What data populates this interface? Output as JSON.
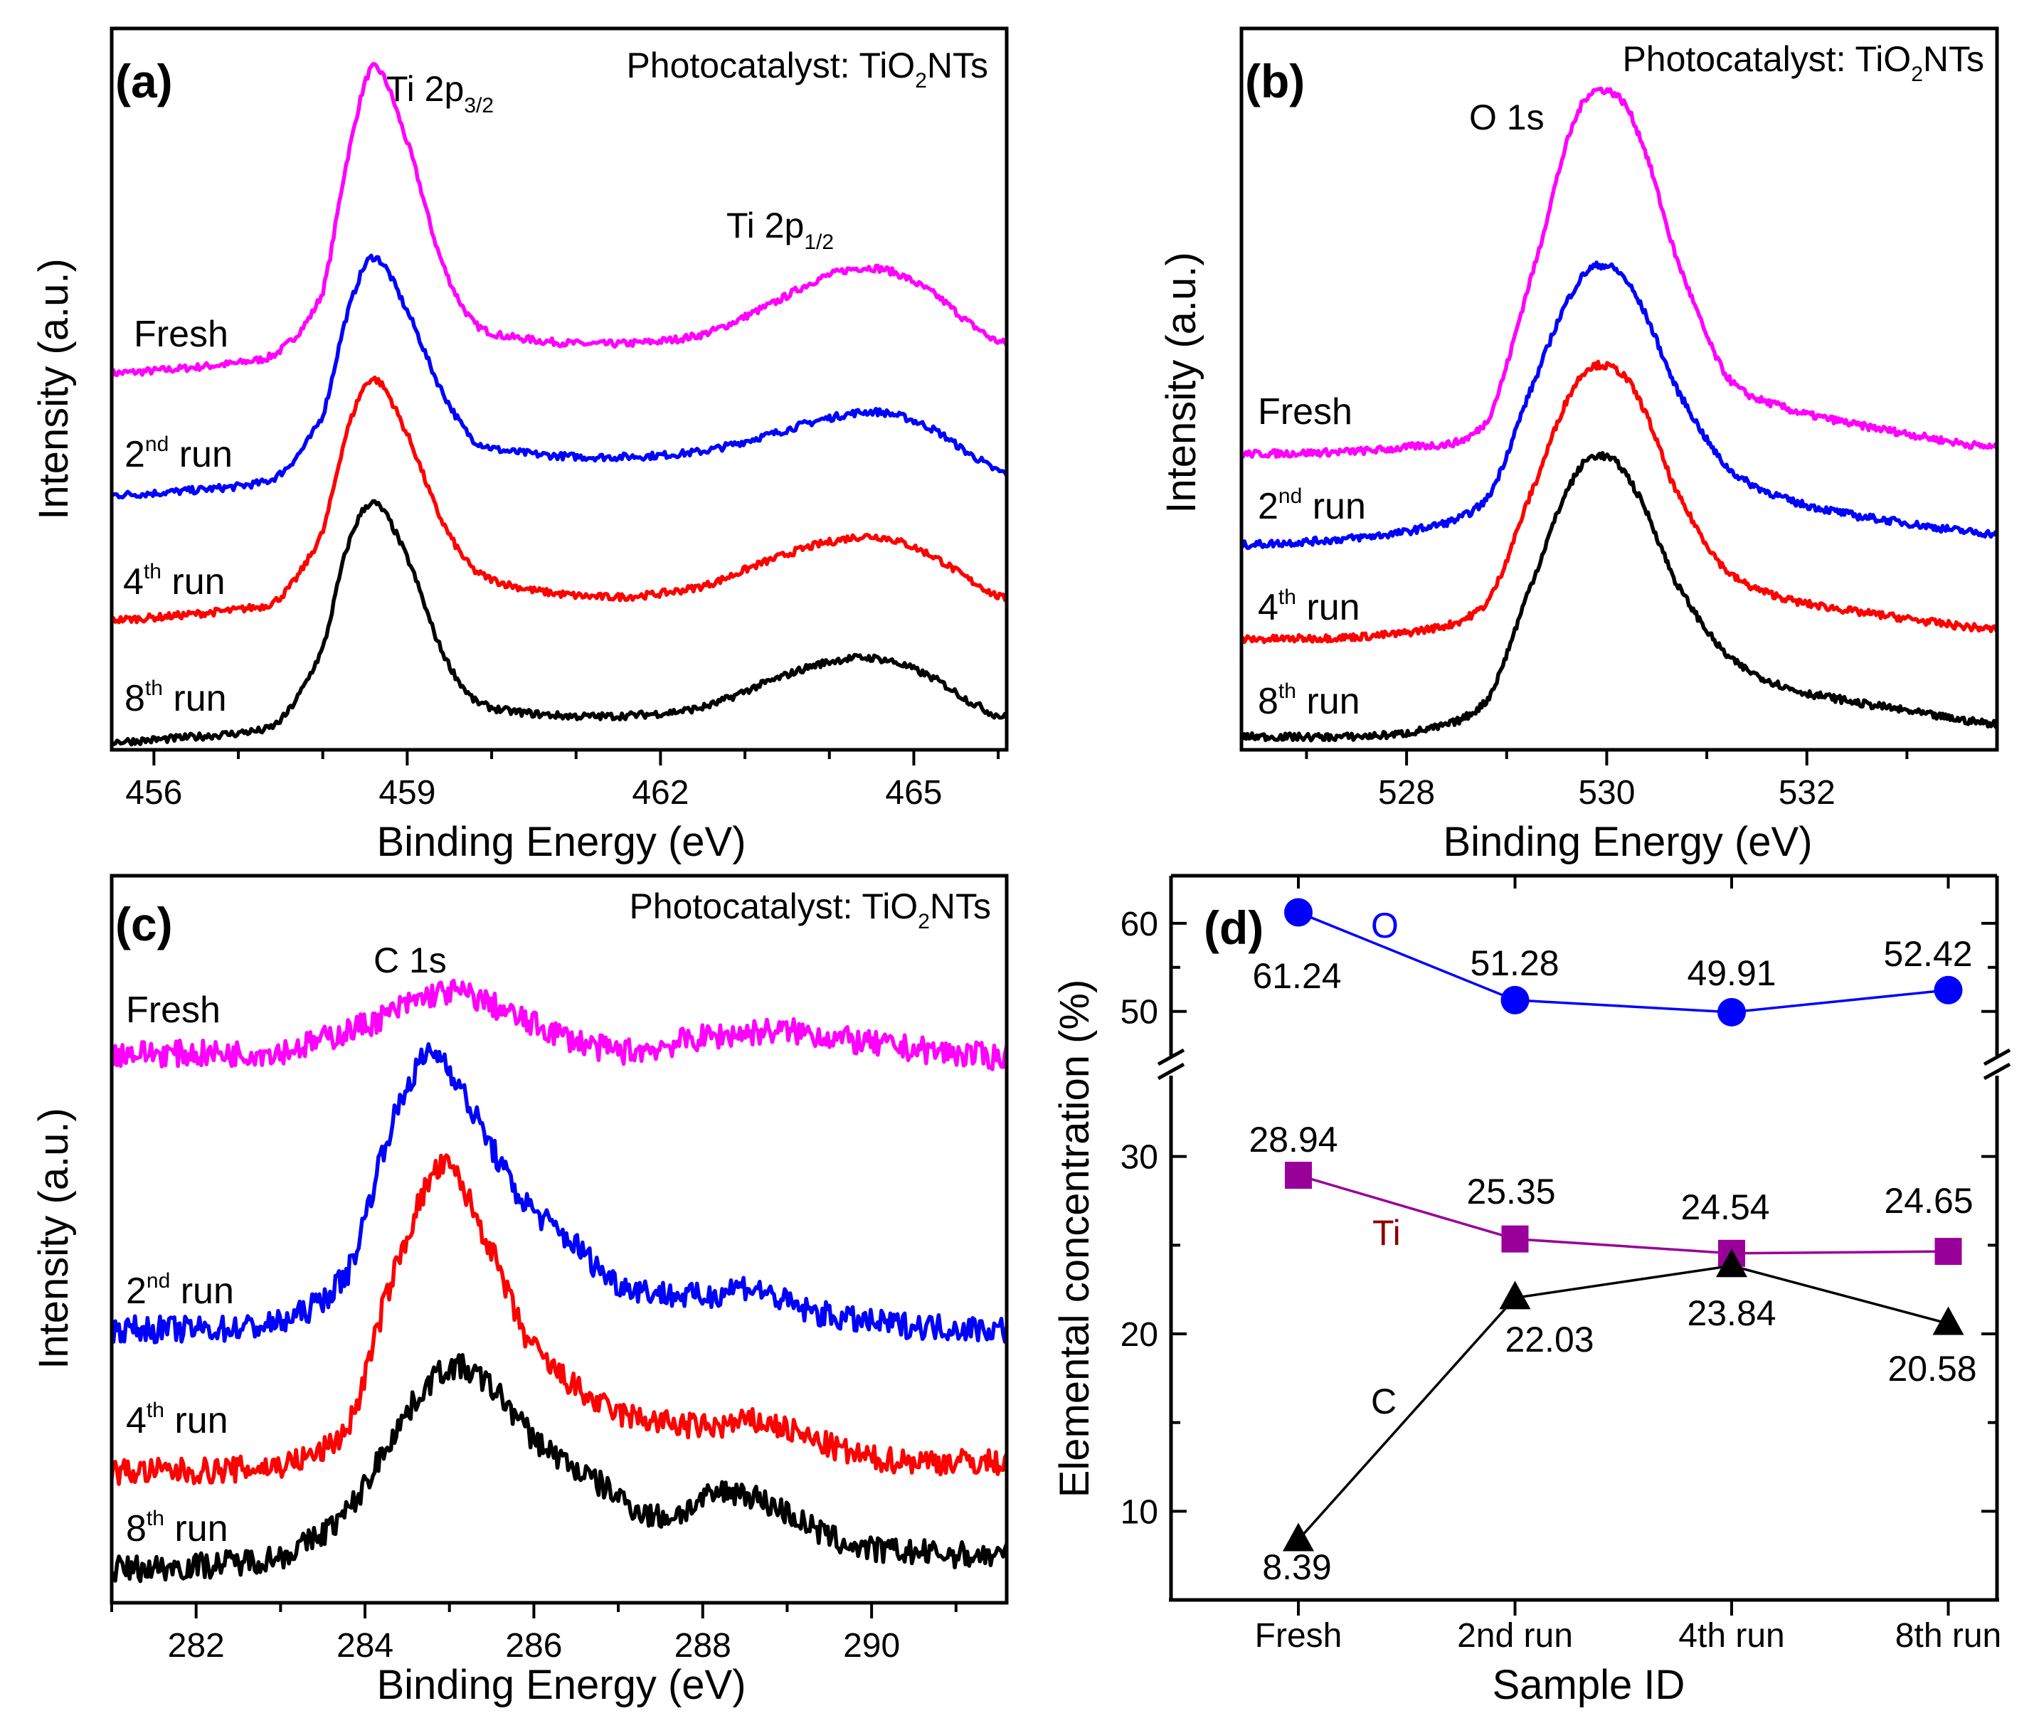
{
  "chart_data": [
    {
      "panel": "(a)",
      "type": "line",
      "title_parts": [
        "Photocatalyst: TiO",
        "2",
        "NTs"
      ],
      "peak_labels": [
        [
          "Ti 2p",
          "3/2"
        ],
        [
          "Ti 2p",
          "1/2"
        ]
      ],
      "xlabel": "Binding Energy (eV)",
      "ylabel": "Intensity (a.u.)",
      "xlim": [
        455.5,
        466.1
      ],
      "ylim": [
        0,
        100
      ],
      "xticks": [
        "456",
        "459",
        "462",
        "465"
      ],
      "minor_tick_step": 1,
      "series": [
        {
          "label": [
            "Fresh",
            "",
            ""
          ],
          "color": "#ff00ff",
          "x": [
            455.5,
            457,
            457.5,
            458,
            458.3,
            458.6,
            459,
            459.4,
            459.8,
            460.5,
            461.5,
            462.5,
            463.3,
            464,
            464.6,
            465.2,
            465.8,
            466.1
          ],
          "y": [
            52.2,
            53.6,
            55.4,
            63.5,
            82.4,
            94.6,
            84.2,
            68,
            59,
            56.8,
            56.3,
            57.6,
            61.7,
            65.8,
            66.7,
            63.5,
            58.1,
            56.3
          ]
        },
        {
          "label": [
            "2",
            "nd",
            " run"
          ],
          "color": "#0000ff",
          "x": [
            455.5,
            457,
            457.5,
            458,
            458.3,
            458.6,
            459,
            459.4,
            459.8,
            460.5,
            461.5,
            462.5,
            463.3,
            464,
            464.6,
            465.2,
            465.8,
            466.1
          ],
          "y": [
            35.3,
            36.5,
            38.3,
            46.4,
            60.8,
            68.3,
            60.8,
            50,
            42.8,
            41,
            40.6,
            41.4,
            43.7,
            46,
            46.8,
            44.6,
            40.1,
            38.3
          ]
        },
        {
          "label": [
            "4",
            "th",
            " run"
          ],
          "color": "#ff0000",
          "x": [
            455.5,
            457,
            457.5,
            458,
            458.3,
            458.6,
            459,
            459.4,
            459.8,
            460.5,
            461.5,
            462.5,
            463.3,
            464,
            464.6,
            465.2,
            465.8,
            466.1
          ],
          "y": [
            18,
            19.4,
            21.2,
            30.2,
            44.6,
            51.4,
            43.7,
            32,
            24.8,
            22.1,
            21.2,
            22.7,
            26.3,
            28.8,
            29.5,
            27,
            22.7,
            20.9
          ]
        },
        {
          "label": [
            "8",
            "th",
            " run"
          ],
          "color": "#000000",
          "x": [
            455.5,
            457,
            457.5,
            458,
            458.3,
            458.6,
            459,
            459.4,
            459.8,
            460.5,
            461.5,
            462.5,
            463.3,
            464,
            464.6,
            465.2,
            465.8,
            466.1
          ],
          "y": [
            1.1,
            2.3,
            4.1,
            14,
            28.4,
            34.2,
            26.6,
            14,
            6.8,
            5,
            4.7,
            5.9,
            9.5,
            12.2,
            12.6,
            10.1,
            5.9,
            4.5
          ]
        }
      ]
    },
    {
      "panel": "(b)",
      "type": "line",
      "title_parts": [
        "Photocatalyst: TiO",
        "2",
        "NTs"
      ],
      "peak_labels": [
        [
          "O 1s",
          ""
        ]
      ],
      "xlabel": "Binding Energy (eV)",
      "ylabel": "Intensity (a.u.)",
      "xlim": [
        526.35,
        533.9
      ],
      "ylim": [
        0,
        100
      ],
      "xticks": [
        "528",
        "530",
        "532"
      ],
      "minor_tick_step": 1,
      "series": [
        {
          "label": [
            "Fresh",
            "",
            ""
          ],
          "color": "#ff00ff",
          "x": [
            526.35,
            528,
            528.8,
            529.3,
            529.7,
            530,
            530.3,
            530.7,
            531.2,
            531.8,
            532.5,
            533.9
          ],
          "y": [
            41,
            41.9,
            45.5,
            68,
            87.8,
            91.4,
            86,
            68,
            51.8,
            47.3,
            45,
            41.9
          ]
        },
        {
          "label": [
            "2",
            "nd",
            " run"
          ],
          "color": "#0000ff",
          "x": [
            526.35,
            528,
            528.8,
            529.3,
            529.7,
            530,
            530.3,
            530.7,
            531.2,
            531.8,
            532.5,
            533.9
          ],
          "y": [
            28.4,
            30.2,
            34.7,
            51.8,
            64.4,
            67.1,
            62.6,
            50,
            39.2,
            34.7,
            32.4,
            29.9
          ]
        },
        {
          "label": [
            "4",
            "th",
            " run"
          ],
          "color": "#ff0000",
          "x": [
            526.35,
            528,
            528.8,
            529.3,
            529.7,
            530,
            530.3,
            530.7,
            531.2,
            531.8,
            532.5,
            533.9
          ],
          "y": [
            15.3,
            16.2,
            20.3,
            37.4,
            50.9,
            53.2,
            49.1,
            35.6,
            24.8,
            20.9,
            19.1,
            16.7
          ]
        },
        {
          "label": [
            "8",
            "th",
            " run"
          ],
          "color": "#000000",
          "x": [
            526.35,
            528,
            528.8,
            529.3,
            529.7,
            530,
            530.3,
            530.7,
            531.2,
            531.8,
            532.5,
            533.9
          ],
          "y": [
            1.8,
            2.3,
            6.8,
            24.8,
            38.3,
            40.6,
            35.6,
            23,
            13.1,
            8.6,
            6.5,
            3.6
          ]
        }
      ]
    },
    {
      "panel": "(c)",
      "type": "line",
      "title_parts": [
        "Photocatalyst: TiO",
        "2",
        "NTs"
      ],
      "peak_labels": [
        [
          "C 1s",
          ""
        ]
      ],
      "xlabel": "Binding Energy (eV)",
      "ylabel": "Intensity (a.u.)",
      "xlim": [
        281,
        291.6
      ],
      "ylim": [
        0,
        100
      ],
      "xticks": [
        "282",
        "284",
        "286",
        "288",
        "290"
      ],
      "minor_tick_step": 1,
      "series": [
        {
          "label": [
            "Fresh",
            "",
            ""
          ],
          "color": "#ff00ff",
          "x": [
            281,
            283,
            284,
            285,
            286,
            287,
            288,
            289,
            290,
            291.6
          ],
          "y": [
            75.6,
            75.9,
            79.5,
            84,
            79.5,
            75.9,
            77.7,
            78.6,
            76.8,
            75
          ]
        },
        {
          "label": [
            "2",
            "nd",
            " run"
          ],
          "color": "#0000ff",
          "x": [
            281,
            283,
            283.8,
            284.3,
            284.8,
            285.3,
            285.8,
            286.5,
            287,
            288,
            288.5,
            289.2,
            290,
            291.6
          ],
          "y": [
            37.6,
            38.5,
            45.6,
            65.2,
            75.6,
            67,
            56.3,
            49.2,
            43.9,
            42.1,
            43.5,
            40.3,
            38.5,
            37.6
          ]
        },
        {
          "label": [
            "4",
            "th",
            " run"
          ],
          "color": "#ff0000",
          "x": [
            281,
            283,
            283.8,
            284.3,
            284.9,
            285.4,
            285.9,
            286.5,
            287,
            288,
            288.7,
            289.5,
            290,
            291.6
          ],
          "y": [
            18,
            18.9,
            24.2,
            43.9,
            59.9,
            51,
            36.7,
            29.6,
            26,
            24.2,
            24.8,
            21.6,
            19.8,
            19.3
          ]
        },
        {
          "label": [
            "8",
            "th",
            " run"
          ],
          "color": "#000000",
          "x": [
            281,
            283,
            283.8,
            284.5,
            285,
            285.5,
            286,
            286.8,
            287.5,
            288.3,
            288.8,
            289.5,
            290,
            291.6
          ],
          "y": [
            4.6,
            6.4,
            12.7,
            26,
            32.3,
            29.6,
            22.5,
            16.2,
            11.8,
            15.3,
            13.5,
            9.1,
            7.3,
            6.4
          ]
        }
      ]
    },
    {
      "panel": "(d)",
      "type": "line",
      "xlabel": "Sample ID",
      "ylabel": "Elemental concentration (%)",
      "categories": [
        "Fresh",
        "2nd run",
        "4th run",
        "8th run"
      ],
      "y_axis_break": [
        35,
        44
      ],
      "ylim_lower": [
        5,
        35
      ],
      "ylim_upper": [
        44,
        65.4
      ],
      "yticks_lower": [
        "10",
        "20",
        "30"
      ],
      "yticks_upper": [
        "50",
        "60"
      ],
      "series": [
        {
          "name": "O",
          "color": "#0000ff",
          "marker": "circle",
          "values": [
            61.24,
            51.28,
            49.91,
            52.42
          ],
          "value_labels": [
            "61.24",
            "51.28",
            "49.91",
            "52.42"
          ]
        },
        {
          "name": "Ti",
          "color": "#990099",
          "label_color": "#8b0000",
          "marker": "square",
          "values": [
            28.94,
            25.35,
            24.54,
            24.65
          ],
          "value_labels": [
            "28.94",
            "25.35",
            "24.54",
            "24.65"
          ]
        },
        {
          "name": "C",
          "color": "#000000",
          "marker": "triangle",
          "values": [
            8.39,
            22.03,
            23.84,
            20.58
          ],
          "value_labels": [
            "8.39",
            "22.03",
            "23.84",
            "20.58"
          ]
        }
      ]
    }
  ]
}
